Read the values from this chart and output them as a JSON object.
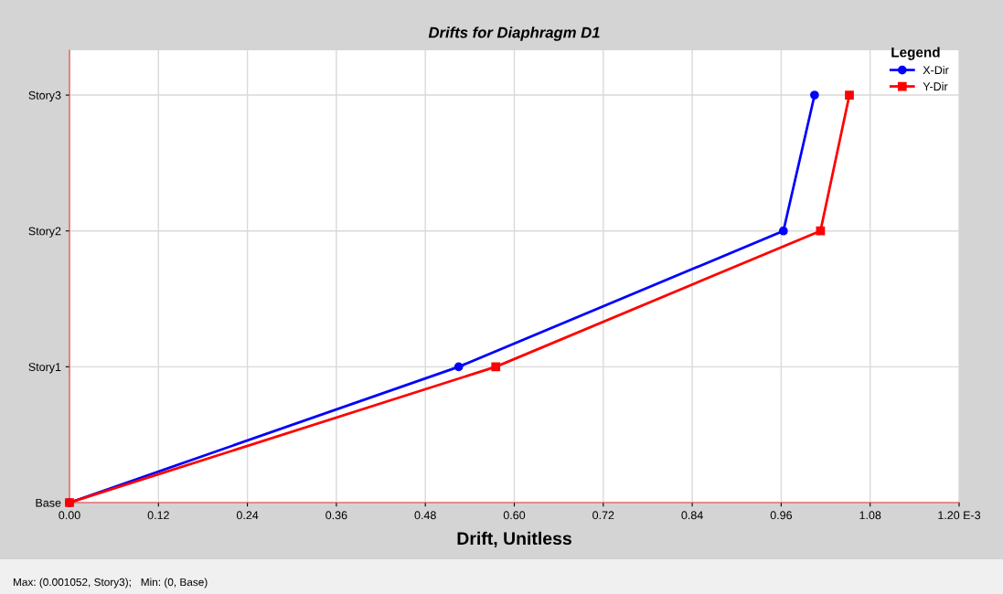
{
  "chart_data": {
    "type": "line",
    "orientation": "horizontal",
    "title": "Drifts for Diaphragm D1",
    "xlabel": "Drift, Unitless",
    "legend_title": "Legend",
    "categories": [
      "Story3",
      "Story2",
      "Story1",
      "Base"
    ],
    "series": [
      {
        "name": "X-Dir",
        "color": "#0000ff",
        "marker": "circle",
        "values": [
          1.005,
          0.963,
          0.525,
          0
        ]
      },
      {
        "name": "Y-Dir",
        "color": "#ff0000",
        "marker": "square",
        "values": [
          1.052,
          1.013,
          0.575,
          0
        ]
      }
    ],
    "xlim": [
      0,
      1.2
    ],
    "xticks": [
      {
        "value": 0,
        "label": "0.00"
      },
      0.12,
      0.24,
      0.36,
      0.48,
      {
        "value": 0.6,
        "label": "0.60"
      },
      0.72,
      0.84,
      0.96,
      1.08,
      {
        "value": 1.2,
        "label": "1.20 E-3"
      }
    ],
    "grid": true,
    "legend": "top right",
    "line_style": "solid",
    "annotations": [
      "Max: (0.001052, Story3);   Min: (0, Base)"
    ]
  }
}
